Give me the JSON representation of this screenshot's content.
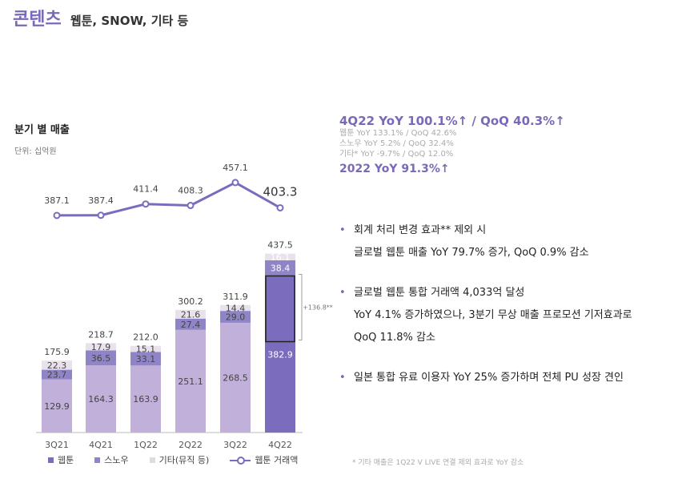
{
  "header": {
    "title": "콘텐츠",
    "subtitle": "웹툰, SNOW, 기타 등"
  },
  "chart_header": {
    "title": "분기 별 매출",
    "unit": "단위: 십억원"
  },
  "highlights": {
    "main": "4Q22 YoY 100.1%↑ / QoQ 40.3%↑",
    "lines": [
      "웹툰 YoY 133.1% / QoQ 42.6%",
      "스노우 YoY 5.2% / QoQ 32.4%",
      "기타* YoY -9.7% / QoQ 12.0%"
    ],
    "annual": "2022 YoY 91.3%↑"
  },
  "bullets": [
    {
      "lines": [
        "회계 처리 변경 효과** 제외 시",
        "글로벌 웹툰 매출 YoY 79.7% 증가, QoQ 0.9% 감소"
      ]
    },
    {
      "lines": [
        "글로벌 웹툰 통합 거래액 4,033억 달성",
        "YoY 4.1% 증가하였으나, 3분기 무상 매출 프로모션 기저효과로",
        "QoQ 11.8% 감소"
      ]
    },
    {
      "lines": [
        "일본 통합 유료 이용자 YoY 25% 증가하며 전체 PU 성장 견인"
      ]
    }
  ],
  "footnote": "* 기타 매출은 1Q22 V LIVE 연결 제외 효과로 YoY 감소",
  "legend": {
    "webtoon": "웹툰",
    "snow": "스노우",
    "other": "기타(뮤직 등)",
    "line": "웹툰 거래액"
  },
  "colors": {
    "webtoon": "#c0b0da",
    "webtoon_latest": "#7b6cbd",
    "snow": "#8f84c6",
    "other": "#e9e2ec",
    "line": "#7a6bbf",
    "accent": "#7b68b9"
  },
  "chart_data": {
    "type": "bar",
    "stacked": true,
    "categories": [
      "3Q21",
      "4Q21",
      "1Q22",
      "2Q22",
      "3Q22",
      "4Q22"
    ],
    "series": [
      {
        "name": "웹툰",
        "values": [
          129.9,
          164.3,
          163.9,
          251.1,
          268.5,
          382.9
        ]
      },
      {
        "name": "스노우",
        "values": [
          23.7,
          36.5,
          33.1,
          27.4,
          29.0,
          38.4
        ]
      },
      {
        "name": "기타(뮤직 등)",
        "values": [
          22.3,
          17.9,
          15.1,
          21.6,
          14.4,
          16.1
        ]
      }
    ],
    "totals": [
      175.9,
      218.7,
      212.0,
      300.2,
      311.9,
      437.5
    ],
    "line_series": {
      "name": "웹툰 거래액",
      "values": [
        387.1,
        387.4,
        411.4,
        408.3,
        457.1,
        403.3
      ]
    },
    "annotation": "+136.8**"
  }
}
